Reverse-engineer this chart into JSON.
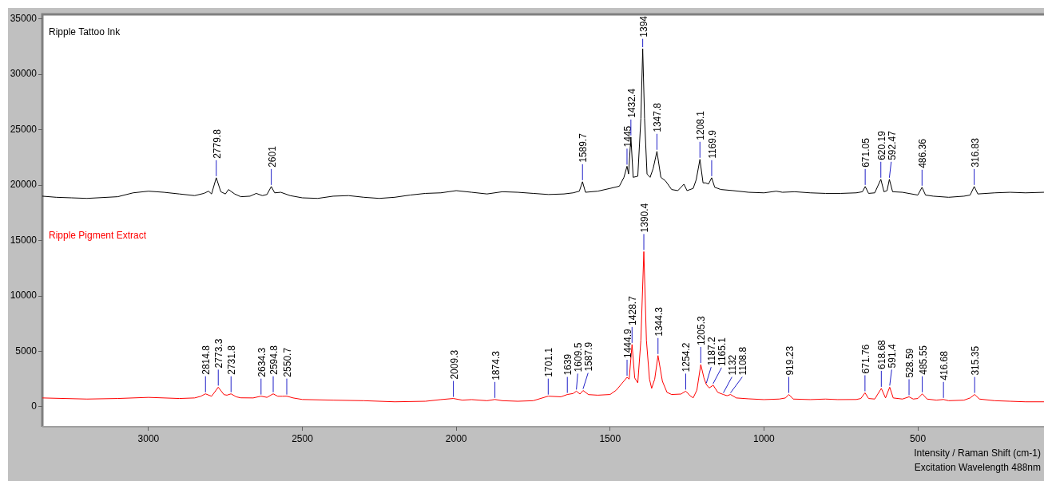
{
  "chart_data": {
    "type": "line",
    "xlabel": "Intensity / Raman Shift (cm-1)",
    "marker": "none",
    "legend": false,
    "grid": false,
    "xlim": [
      3345,
      90
    ],
    "xticks": [
      3000,
      2500,
      2000,
      1500,
      1000,
      500
    ],
    "ylim": [
      -1800,
      35400
    ],
    "yticks": [
      0,
      5000,
      10000,
      15000,
      20000,
      25000,
      30000,
      35000
    ],
    "series": [
      {
        "name": "Ripple Tattoo Ink",
        "color": "#000000",
        "x": [
          3345,
          3300,
          3250,
          3200,
          3100,
          3050,
          3000,
          2950,
          2900,
          2850,
          2820,
          2805,
          2795,
          2779.8,
          2765,
          2750,
          2740,
          2720,
          2700,
          2670,
          2650,
          2630,
          2615,
          2601,
          2590,
          2570,
          2540,
          2500,
          2450,
          2400,
          2350,
          2300,
          2250,
          2200,
          2150,
          2100,
          2050,
          2000,
          1950,
          1900,
          1850,
          1800,
          1750,
          1700,
          1650,
          1620,
          1600,
          1589.7,
          1580,
          1540,
          1500,
          1470,
          1455,
          1445,
          1440,
          1432.4,
          1425,
          1410,
          1400,
          1394,
          1388,
          1380,
          1370,
          1360,
          1347.8,
          1335,
          1320,
          1300,
          1280,
          1260,
          1250,
          1230,
          1220,
          1208.1,
          1198,
          1190,
          1180,
          1169.9,
          1160,
          1140,
          1100,
          1050,
          1000,
          960,
          940,
          900,
          850,
          800,
          750,
          700,
          680,
          671.05,
          660,
          640,
          620.19,
          610,
          600,
          592.47,
          582,
          550,
          500,
          486.36,
          475,
          450,
          400,
          350,
          330,
          316.83,
          305,
          250,
          200,
          150,
          90
        ],
        "values": [
          19000,
          18900,
          18850,
          18800,
          18950,
          19300,
          19450,
          19350,
          19200,
          19050,
          19250,
          19450,
          19200,
          20660,
          19400,
          19200,
          19600,
          19200,
          18950,
          19000,
          19250,
          19050,
          19150,
          19870,
          19300,
          19350,
          19050,
          18850,
          18800,
          19000,
          19050,
          18900,
          18800,
          18900,
          19100,
          19250,
          19300,
          19500,
          19350,
          19200,
          19400,
          19350,
          19250,
          19150,
          19200,
          19300,
          19450,
          20300,
          19350,
          19450,
          19700,
          19900,
          20700,
          21700,
          21000,
          24330,
          20700,
          20800,
          26000,
          32300,
          26000,
          21000,
          20700,
          21500,
          23040,
          20700,
          20380,
          19600,
          19500,
          20080,
          19500,
          19700,
          20500,
          22320,
          20200,
          20200,
          20100,
          20660,
          19800,
          19600,
          19500,
          19350,
          19300,
          19450,
          19350,
          19400,
          19300,
          19250,
          19250,
          19300,
          19400,
          19870,
          19250,
          19300,
          20520,
          19400,
          19500,
          20520,
          19400,
          19350,
          19100,
          19800,
          19100,
          19000,
          18900,
          19000,
          19100,
          19870,
          19200,
          19300,
          19350,
          19300,
          19350
        ]
      },
      {
        "name": "Ripple Pigment Extract",
        "color": "#ff0000",
        "x": [
          3345,
          3200,
          3100,
          3000,
          2900,
          2850,
          2830,
          2814.8,
          2795,
          2773.3,
          2755,
          2745,
          2731.8,
          2715,
          2700,
          2660,
          2634.3,
          2615,
          2594.8,
          2580,
          2565,
          2550.7,
          2530,
          2500,
          2400,
          2300,
          2200,
          2100,
          2050,
          2009.3,
          1980,
          1950,
          1900,
          1874.3,
          1850,
          1800,
          1750,
          1701.1,
          1660,
          1639,
          1620,
          1609.5,
          1598,
          1587.9,
          1570,
          1540,
          1500,
          1480,
          1460,
          1444.9,
          1438,
          1428.7,
          1420,
          1410,
          1400,
          1390.4,
          1382,
          1372,
          1365,
          1355,
          1344.3,
          1330,
          1315,
          1300,
          1270,
          1254.2,
          1240,
          1230,
          1218,
          1205.3,
          1195,
          1187.2,
          1178,
          1165.1,
          1150,
          1132,
          1120,
          1108.8,
          1090,
          1050,
          1000,
          950,
          930,
          919.23,
          905,
          850,
          800,
          760,
          700,
          685,
          671.76,
          660,
          640,
          618.68,
          605,
          591.4,
          580,
          550,
          528.59,
          515,
          500,
          485.55,
          470,
          440,
          416.68,
          400,
          350,
          330,
          315.35,
          300,
          250,
          200,
          150,
          90
        ],
        "values": [
          800,
          700,
          750,
          850,
          750,
          800,
          950,
          1170,
          950,
          1770,
          1100,
          1050,
          1170,
          900,
          810,
          800,
          960,
          850,
          1170,
          950,
          950,
          960,
          800,
          660,
          600,
          550,
          450,
          500,
          650,
          750,
          600,
          650,
          550,
          660,
          550,
          500,
          550,
          960,
          900,
          1110,
          1200,
          1410,
          1150,
          1470,
          1100,
          1050,
          1110,
          1500,
          2160,
          2660,
          2500,
          5620,
          2600,
          2160,
          6000,
          14000,
          6000,
          2500,
          1660,
          2500,
          4620,
          2300,
          1300,
          1110,
          1150,
          1410,
          1000,
          810,
          1500,
          3810,
          2600,
          2000,
          1700,
          1950,
          1300,
          1110,
          1000,
          1110,
          800,
          720,
          650,
          700,
          800,
          1110,
          700,
          650,
          700,
          650,
          660,
          750,
          1260,
          750,
          700,
          1660,
          800,
          1770,
          800,
          700,
          900,
          700,
          750,
          1170,
          700,
          600,
          660,
          550,
          600,
          800,
          1110,
          700,
          550,
          500,
          450,
          450
        ]
      }
    ],
    "annotations": [
      {
        "text": "2779.8",
        "x": 2779.8,
        "y": 20660
      },
      {
        "text": "2601",
        "x": 2601,
        "y": 19870
      },
      {
        "text": "1589.7",
        "x": 1589.7,
        "y": 20300
      },
      {
        "text": "1445",
        "x": 1445,
        "y": 21700
      },
      {
        "text": "1432.4",
        "x": 1432.4,
        "y": 24330
      },
      {
        "text": "1394",
        "x": 1394,
        "y": 32300
      },
      {
        "text": "1347.8",
        "x": 1347.8,
        "y": 23040
      },
      {
        "text": "1208.1",
        "x": 1208.1,
        "y": 22320
      },
      {
        "text": "1169.9",
        "x": 1169.9,
        "y": 20660
      },
      {
        "text": "671.05",
        "x": 671.05,
        "y": 19870
      },
      {
        "text": "620.19",
        "x": 620.19,
        "y": 20520
      },
      {
        "text": "592.47",
        "x": 592.47,
        "y": 20520
      },
      {
        "text": "486.36",
        "x": 486.36,
        "y": 19800
      },
      {
        "text": "316.83",
        "x": 316.83,
        "y": 19870
      },
      {
        "text": "2814.8",
        "x": 2814.8,
        "y": 1170
      },
      {
        "text": "2773.3",
        "x": 2773.3,
        "y": 1770
      },
      {
        "text": "2731.8",
        "x": 2731.8,
        "y": 1170
      },
      {
        "text": "2634.3",
        "x": 2634.3,
        "y": 960
      },
      {
        "text": "2594.8",
        "x": 2594.8,
        "y": 1170
      },
      {
        "text": "2550.7",
        "x": 2550.7,
        "y": 960
      },
      {
        "text": "2009.3",
        "x": 2009.3,
        "y": 750
      },
      {
        "text": "1874.3",
        "x": 1874.3,
        "y": 660
      },
      {
        "text": "1701.1",
        "x": 1701.1,
        "y": 960
      },
      {
        "text": "1639",
        "x": 1639,
        "y": 1110
      },
      {
        "text": "1609.5",
        "x": 1609.5,
        "y": 1410
      },
      {
        "text": "1587.9",
        "x": 1587.9,
        "y": 1470
      },
      {
        "text": "1444.9",
        "x": 1444.9,
        "y": 2660
      },
      {
        "text": "1428.7",
        "x": 1428.7,
        "y": 5620
      },
      {
        "text": "1390.4",
        "x": 1390.4,
        "y": 14000
      },
      {
        "text": "1344.3",
        "x": 1344.3,
        "y": 4620
      },
      {
        "text": "1254.2",
        "x": 1254.2,
        "y": 1410
      },
      {
        "text": "1205.3",
        "x": 1205.3,
        "y": 3810
      },
      {
        "text": "1187.2",
        "x": 1187.2,
        "y": 2000
      },
      {
        "text": "1165.1",
        "x": 1165.1,
        "y": 1950
      },
      {
        "text": "1132",
        "x": 1132,
        "y": 1110
      },
      {
        "text": "1108.8",
        "x": 1108.8,
        "y": 1110
      },
      {
        "text": "919.23",
        "x": 919.23,
        "y": 1110
      },
      {
        "text": "671.76",
        "x": 671.76,
        "y": 1260
      },
      {
        "text": "618.68",
        "x": 618.68,
        "y": 1660
      },
      {
        "text": "591.4",
        "x": 591.4,
        "y": 1770
      },
      {
        "text": "528.59",
        "x": 528.59,
        "y": 900
      },
      {
        "text": "485.55",
        "x": 485.55,
        "y": 1170
      },
      {
        "text": "416.68",
        "x": 416.68,
        "y": 660
      },
      {
        "text": "315.35",
        "x": 315.35,
        "y": 1110
      },
      "Excitation Wavelength 488nm"
    ]
  }
}
